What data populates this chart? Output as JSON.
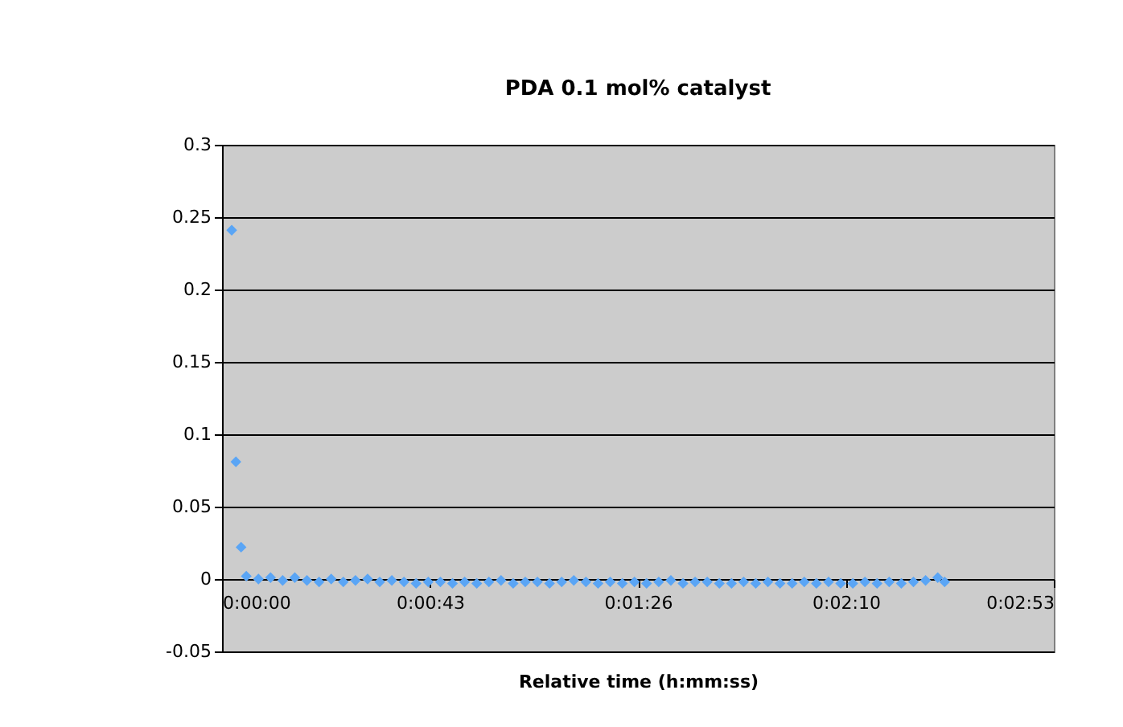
{
  "chart_data": {
    "type": "scatter",
    "title": "PDA 0.1 mol% catalyst",
    "xlabel": "Relative time (h:mm:ss)",
    "x": [
      0.00056,
      0.0008,
      0.0011,
      0.0014,
      0.0021,
      0.0028,
      0.0035,
      0.0042,
      0.0049,
      0.0056,
      0.0063,
      0.007,
      0.0077,
      0.0084,
      0.0091,
      0.0098,
      0.0105,
      0.0112,
      0.0119,
      0.0126,
      0.0133,
      0.014,
      0.0147,
      0.0154,
      0.0161,
      0.0168,
      0.0175,
      0.0182,
      0.0189,
      0.0196,
      0.0203,
      0.021,
      0.0217,
      0.0224,
      0.0231,
      0.0238,
      0.0245,
      0.0252,
      0.0259,
      0.0266,
      0.0273,
      0.028,
      0.0287,
      0.0294,
      0.0301,
      0.0308,
      0.0315,
      0.0322,
      0.0329,
      0.0336,
      0.0343,
      0.035,
      0.0357,
      0.0364,
      0.0371,
      0.0378,
      0.0385,
      0.0392,
      0.0399,
      0.0406,
      0.0413,
      0.0417
    ],
    "series": [
      {
        "color": "#5aa5f5",
        "values": [
          0.241,
          0.081,
          0.022,
          0.002,
          0.0,
          0.001,
          -0.001,
          0.001,
          -0.001,
          -0.002,
          0.0,
          -0.002,
          -0.001,
          0.0,
          -0.002,
          -0.001,
          -0.002,
          -0.003,
          -0.002,
          -0.002,
          -0.003,
          -0.002,
          -0.003,
          -0.002,
          -0.001,
          -0.003,
          -0.002,
          -0.002,
          -0.003,
          -0.002,
          -0.001,
          -0.002,
          -0.003,
          -0.002,
          -0.003,
          -0.002,
          -0.003,
          -0.002,
          -0.001,
          -0.003,
          -0.002,
          -0.002,
          -0.003,
          -0.003,
          -0.002,
          -0.003,
          -0.002,
          -0.003,
          -0.003,
          -0.002,
          -0.003,
          -0.002,
          -0.003,
          -0.003,
          -0.002,
          -0.003,
          -0.002,
          -0.003,
          -0.002,
          -0.001,
          0.001,
          -0.002
        ]
      }
    ],
    "xlim": [
      0,
      0.048
    ],
    "xticks": [
      {
        "value": 0,
        "label": "0:00:00"
      },
      {
        "value": 0.012,
        "label": "0:00:43"
      },
      {
        "value": 0.024,
        "label": "0:01:26"
      },
      {
        "value": 0.036,
        "label": "0:02:10"
      },
      {
        "value": 0.048,
        "label": "0:02:53"
      }
    ],
    "ylim": [
      -0.05,
      0.3
    ],
    "yticks": [
      -0.05,
      0,
      0.05,
      0.1,
      0.15,
      0.2,
      0.25,
      0.3
    ],
    "grid": "y",
    "marker": "diamond"
  }
}
